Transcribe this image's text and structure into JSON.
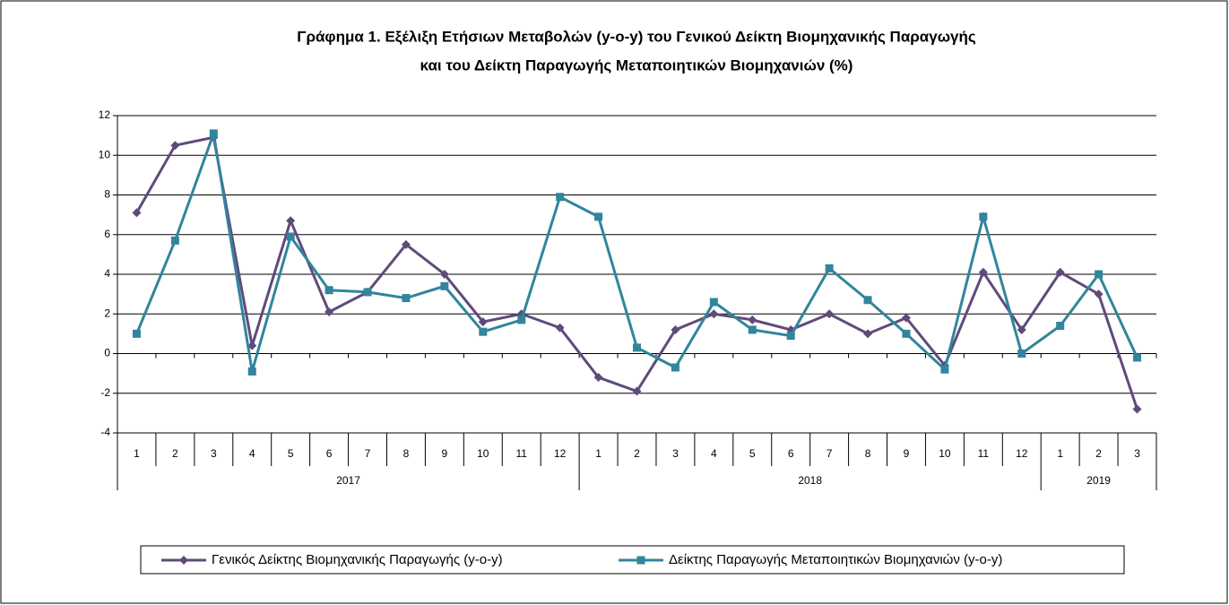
{
  "chart_data": {
    "type": "line",
    "title": [
      "Γράφημα 1. Εξέλιξη Ετήσιων Μεταβολών  (y-o-y) του Γενικού Δείκτη Βιομηχανικής Παραγωγής",
      "και του Δείκτη Παραγωγής Μεταποιητικών Βιομηχανιών (%)"
    ],
    "category_groups": [
      {
        "label": "2017",
        "categories": [
          "1",
          "2",
          "3",
          "4",
          "5",
          "6",
          "7",
          "8",
          "9",
          "10",
          "11",
          "12"
        ]
      },
      {
        "label": "2018",
        "categories": [
          "1",
          "2",
          "3",
          "4",
          "5",
          "6",
          "7",
          "8",
          "9",
          "10",
          "11",
          "12"
        ]
      },
      {
        "label": "2019",
        "categories": [
          "1",
          "2",
          "3"
        ]
      }
    ],
    "series": [
      {
        "name": "Γενικός Δείκτης Βιομηχανικής Παραγωγής (y-o-y)",
        "color": "#604a7b",
        "marker": "diamond",
        "values": [
          7.1,
          10.5,
          10.9,
          0.4,
          6.7,
          2.1,
          3.1,
          5.5,
          4.0,
          1.6,
          2.0,
          1.3,
          -1.2,
          -1.9,
          1.2,
          2.0,
          1.7,
          1.2,
          2.0,
          1.0,
          1.8,
          -0.6,
          4.1,
          1.2,
          4.1,
          3.0,
          -2.8
        ]
      },
      {
        "name": "Δείκτης Παραγωγής Μεταποιητικών Βιομηχανιών (y-o-y)",
        "color": "#31859c",
        "marker": "square",
        "values": [
          1.0,
          5.7,
          11.1,
          -0.9,
          5.9,
          3.2,
          3.1,
          2.8,
          3.4,
          1.1,
          1.7,
          7.9,
          6.9,
          0.3,
          -0.7,
          2.6,
          1.2,
          0.9,
          4.3,
          2.7,
          1.0,
          -0.8,
          6.9,
          0.0,
          1.4,
          4.0,
          -0.2
        ]
      }
    ],
    "ylim": [
      -4,
      12
    ],
    "yticks": [
      -4,
      -2,
      0,
      2,
      4,
      6,
      8,
      10,
      12
    ],
    "grid": true
  }
}
